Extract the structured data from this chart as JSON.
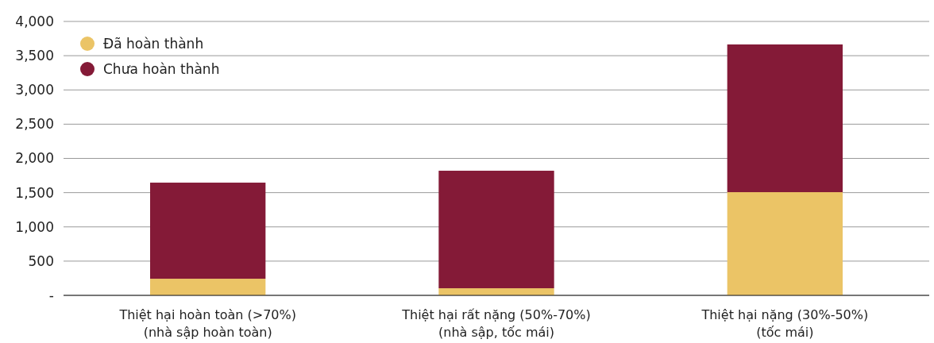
{
  "chart_data": {
    "type": "bar",
    "stacked": true,
    "categories": [
      "Thiệt hại hoàn toàn (>70%)\n(nhà sập hoàn toàn)",
      "Thiệt hại rất nặng (50%-70%)\n(nhà sập, tốc mái)",
      "Thiệt hại nặng (30%-50%)\n(tốc mái)"
    ],
    "series": [
      {
        "name": "Đã hoàn thành",
        "color": "#ebc466",
        "values": [
          243,
          104,
          1507
        ]
      },
      {
        "name": "Chưa hoàn thành",
        "color": "#841a37",
        "values": [
          1403,
          1716,
          2157
        ]
      }
    ],
    "ylim": [
      0,
      4000
    ],
    "yticks": [
      {
        "value": 0,
        "label": "-"
      },
      {
        "value": 500,
        "label": "500"
      },
      {
        "value": 1000,
        "label": "1,000"
      },
      {
        "value": 1500,
        "label": "1,500"
      },
      {
        "value": 2000,
        "label": "2,000"
      },
      {
        "value": 2500,
        "label": "2,500"
      },
      {
        "value": 3000,
        "label": "3,000"
      },
      {
        "value": 3500,
        "label": "3,500"
      },
      {
        "value": 4000,
        "label": "4,000"
      }
    ],
    "grid": "y",
    "legend": "top left"
  }
}
